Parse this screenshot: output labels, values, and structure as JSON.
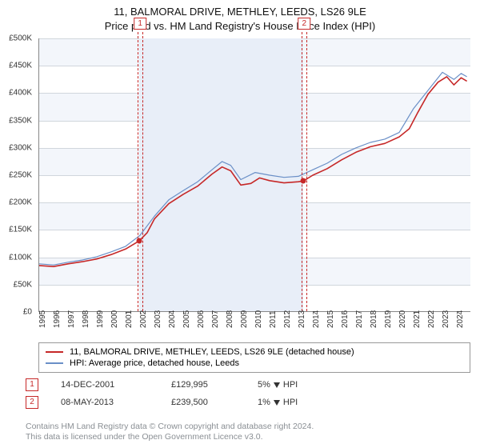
{
  "title_line1": "11, BALMORAL DRIVE, METHLEY, LEEDS, LS26 9LE",
  "title_line2": "Price paid vs. HM Land Registry's House Price Index (HPI)",
  "chart": {
    "type": "line",
    "background_color": "#ffffff",
    "band_color": "#f3f6fb",
    "grid_color": "#d0d6dc",
    "axis_color": "#888888",
    "label_fontsize": 10,
    "xlim": [
      1995,
      2025
    ],
    "ylim": [
      0,
      500000
    ],
    "ytick_step": 50000,
    "yticks": [
      "£0",
      "£50K",
      "£100K",
      "£150K",
      "£200K",
      "£250K",
      "£300K",
      "£350K",
      "£400K",
      "£450K",
      "£500K"
    ],
    "xticks": [
      1995,
      1996,
      1997,
      1998,
      1999,
      2000,
      2001,
      2002,
      2003,
      2004,
      2005,
      2006,
      2007,
      2008,
      2009,
      2010,
      2011,
      2012,
      2013,
      2014,
      2015,
      2016,
      2017,
      2018,
      2019,
      2020,
      2021,
      2022,
      2023,
      2024
    ],
    "shaded_x_from": 2001.95,
    "shaded_x_to": 2013.35,
    "marker_band_width_years": 0.28,
    "markers": [
      {
        "label": "1",
        "x": 2001.95,
        "y": 129995,
        "color": "#c62828"
      },
      {
        "label": "2",
        "x": 2013.35,
        "y": 239500,
        "color": "#c62828"
      }
    ],
    "series": [
      {
        "name": "subject",
        "label": "11, BALMORAL DRIVE, METHLEY, LEEDS, LS26 9LE (detached house)",
        "color": "#c62828",
        "line_width": 1.6,
        "data": [
          [
            1995,
            85000
          ],
          [
            1996,
            83000
          ],
          [
            1997,
            88000
          ],
          [
            1998,
            92000
          ],
          [
            1999,
            97000
          ],
          [
            2000,
            105000
          ],
          [
            2001,
            115000
          ],
          [
            2001.95,
            129995
          ],
          [
            2002.5,
            145000
          ],
          [
            2003,
            170000
          ],
          [
            2004,
            198000
          ],
          [
            2005,
            215000
          ],
          [
            2006,
            230000
          ],
          [
            2007,
            252000
          ],
          [
            2007.7,
            265000
          ],
          [
            2008.3,
            258000
          ],
          [
            2009,
            232000
          ],
          [
            2009.7,
            235000
          ],
          [
            2010.3,
            245000
          ],
          [
            2011,
            240000
          ],
          [
            2012,
            236000
          ],
          [
            2013,
            238000
          ],
          [
            2013.35,
            239500
          ],
          [
            2014,
            250000
          ],
          [
            2015,
            262000
          ],
          [
            2016,
            278000
          ],
          [
            2017,
            292000
          ],
          [
            2018,
            302000
          ],
          [
            2019,
            308000
          ],
          [
            2020,
            320000
          ],
          [
            2020.7,
            335000
          ],
          [
            2021.3,
            365000
          ],
          [
            2022,
            398000
          ],
          [
            2022.7,
            420000
          ],
          [
            2023.3,
            430000
          ],
          [
            2023.8,
            415000
          ],
          [
            2024.3,
            428000
          ],
          [
            2024.7,
            422000
          ]
        ]
      },
      {
        "name": "hpi",
        "label": "HPI: Average price, detached house, Leeds",
        "color": "#6a8fc7",
        "line_width": 1.2,
        "data": [
          [
            1995,
            88000
          ],
          [
            1996,
            86000
          ],
          [
            1997,
            91000
          ],
          [
            1998,
            95000
          ],
          [
            1999,
            101000
          ],
          [
            2000,
            110000
          ],
          [
            2001,
            120000
          ],
          [
            2002,
            140000
          ],
          [
            2003,
            175000
          ],
          [
            2004,
            205000
          ],
          [
            2005,
            222000
          ],
          [
            2006,
            238000
          ],
          [
            2007,
            260000
          ],
          [
            2007.7,
            275000
          ],
          [
            2008.3,
            268000
          ],
          [
            2009,
            242000
          ],
          [
            2010,
            255000
          ],
          [
            2011,
            250000
          ],
          [
            2012,
            246000
          ],
          [
            2013,
            248000
          ],
          [
            2014,
            260000
          ],
          [
            2015,
            272000
          ],
          [
            2016,
            288000
          ],
          [
            2017,
            300000
          ],
          [
            2018,
            310000
          ],
          [
            2019,
            316000
          ],
          [
            2020,
            328000
          ],
          [
            2021,
            372000
          ],
          [
            2022,
            405000
          ],
          [
            2023,
            438000
          ],
          [
            2023.8,
            425000
          ],
          [
            2024.3,
            436000
          ],
          [
            2024.7,
            430000
          ]
        ]
      }
    ]
  },
  "legend": {
    "border_color": "#999999",
    "fontsize": 11
  },
  "events": [
    {
      "badge": "1",
      "date": "14-DEC-2001",
      "price": "£129,995",
      "delta": "5%",
      "direction": "down",
      "against": "HPI"
    },
    {
      "badge": "2",
      "date": "08-MAY-2013",
      "price": "£239,500",
      "delta": "1%",
      "direction": "down",
      "against": "HPI"
    }
  ],
  "footnote_line1": "Contains HM Land Registry data © Crown copyright and database right 2024.",
  "footnote_line2": "This data is licensed under the Open Government Licence v3.0."
}
